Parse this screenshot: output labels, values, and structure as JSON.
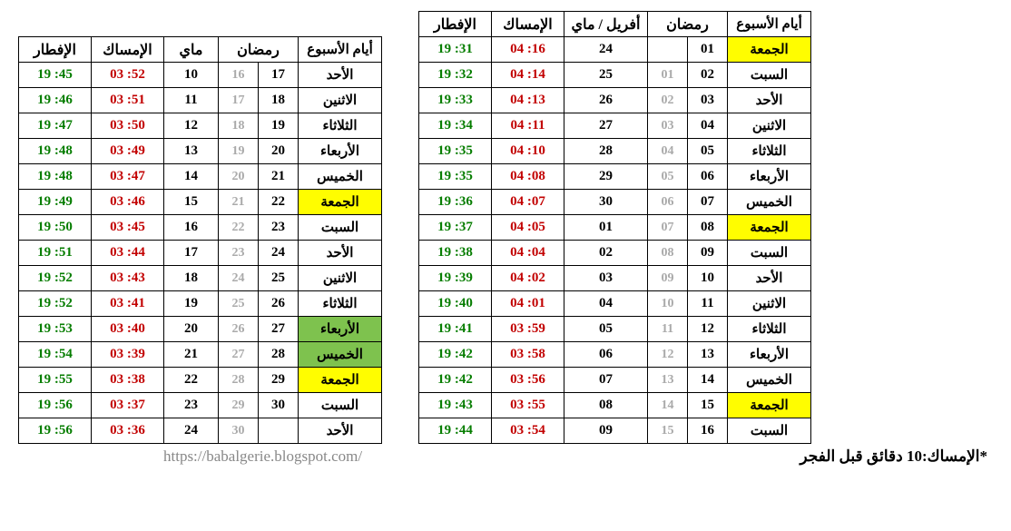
{
  "headers": {
    "iftar": "الإفطار",
    "imsak": "الإمساك",
    "may": "ماي",
    "april_may": "أفريل / ماي",
    "ramadan": "رمضان",
    "weekdays": "أيام الأسبوع"
  },
  "right_table": [
    {
      "iftar": "19 :31",
      "imsak": "04 :16",
      "greg": "24",
      "rama": "",
      "ramb": "01",
      "day": "الجمعة",
      "hl": "yellow"
    },
    {
      "iftar": "19 :32",
      "imsak": "04 :14",
      "greg": "25",
      "rama": "01",
      "ramb": "02",
      "day": "السبت",
      "hl": ""
    },
    {
      "iftar": "19 :33",
      "imsak": "04 :13",
      "greg": "26",
      "rama": "02",
      "ramb": "03",
      "day": "الأحد",
      "hl": ""
    },
    {
      "iftar": "19 :34",
      "imsak": "04 :11",
      "greg": "27",
      "rama": "03",
      "ramb": "04",
      "day": "الاثنين",
      "hl": ""
    },
    {
      "iftar": "19 :35",
      "imsak": "04 :10",
      "greg": "28",
      "rama": "04",
      "ramb": "05",
      "day": "الثلاثاء",
      "hl": ""
    },
    {
      "iftar": "19 :35",
      "imsak": "04 :08",
      "greg": "29",
      "rama": "05",
      "ramb": "06",
      "day": "الأربعاء",
      "hl": ""
    },
    {
      "iftar": "19 :36",
      "imsak": "04 :07",
      "greg": "30",
      "rama": "06",
      "ramb": "07",
      "day": "الخميس",
      "hl": ""
    },
    {
      "iftar": "19 :37",
      "imsak": "04 :05",
      "greg": "01",
      "rama": "07",
      "ramb": "08",
      "day": "الجمعة",
      "hl": "yellow"
    },
    {
      "iftar": "19 :38",
      "imsak": "04 :04",
      "greg": "02",
      "rama": "08",
      "ramb": "09",
      "day": "السبت",
      "hl": ""
    },
    {
      "iftar": "19 :39",
      "imsak": "04 :02",
      "greg": "03",
      "rama": "09",
      "ramb": "10",
      "day": "الأحد",
      "hl": ""
    },
    {
      "iftar": "19 :40",
      "imsak": "04 :01",
      "greg": "04",
      "rama": "10",
      "ramb": "11",
      "day": "الاثنين",
      "hl": ""
    },
    {
      "iftar": "19 :41",
      "imsak": "03 :59",
      "greg": "05",
      "rama": "11",
      "ramb": "12",
      "day": "الثلاثاء",
      "hl": ""
    },
    {
      "iftar": "19 :42",
      "imsak": "03 :58",
      "greg": "06",
      "rama": "12",
      "ramb": "13",
      "day": "الأربعاء",
      "hl": ""
    },
    {
      "iftar": "19 :42",
      "imsak": "03 :56",
      "greg": "07",
      "rama": "13",
      "ramb": "14",
      "day": "الخميس",
      "hl": ""
    },
    {
      "iftar": "19 :43",
      "imsak": "03 :55",
      "greg": "08",
      "rama": "14",
      "ramb": "15",
      "day": "الجمعة",
      "hl": "yellow"
    },
    {
      "iftar": "19 :44",
      "imsak": "03 :54",
      "greg": "09",
      "rama": "15",
      "ramb": "16",
      "day": "السبت",
      "hl": ""
    }
  ],
  "left_table": [
    {
      "iftar": "19 :45",
      "imsak": "03 :52",
      "greg": "10",
      "rama": "16",
      "ramb": "17",
      "day": "الأحد",
      "hl": ""
    },
    {
      "iftar": "19 :46",
      "imsak": "03 :51",
      "greg": "11",
      "rama": "17",
      "ramb": "18",
      "day": "الاثنين",
      "hl": ""
    },
    {
      "iftar": "19 :47",
      "imsak": "03 :50",
      "greg": "12",
      "rama": "18",
      "ramb": "19",
      "day": "الثلاثاء",
      "hl": ""
    },
    {
      "iftar": "19 :48",
      "imsak": "03 :49",
      "greg": "13",
      "rama": "19",
      "ramb": "20",
      "day": "الأربعاء",
      "hl": ""
    },
    {
      "iftar": "19 :48",
      "imsak": "03 :47",
      "greg": "14",
      "rama": "20",
      "ramb": "21",
      "day": "الخميس",
      "hl": ""
    },
    {
      "iftar": "19 :49",
      "imsak": "03 :46",
      "greg": "15",
      "rama": "21",
      "ramb": "22",
      "day": "الجمعة",
      "hl": "yellow"
    },
    {
      "iftar": "19 :50",
      "imsak": "03 :45",
      "greg": "16",
      "rama": "22",
      "ramb": "23",
      "day": "السبت",
      "hl": ""
    },
    {
      "iftar": "19 :51",
      "imsak": "03 :44",
      "greg": "17",
      "rama": "23",
      "ramb": "24",
      "day": "الأحد",
      "hl": ""
    },
    {
      "iftar": "19 :52",
      "imsak": "03 :43",
      "greg": "18",
      "rama": "24",
      "ramb": "25",
      "day": "الاثنين",
      "hl": ""
    },
    {
      "iftar": "19 :52",
      "imsak": "03 :41",
      "greg": "19",
      "rama": "25",
      "ramb": "26",
      "day": "الثلاثاء",
      "hl": ""
    },
    {
      "iftar": "19 :53",
      "imsak": "03 :40",
      "greg": "20",
      "rama": "26",
      "ramb": "27",
      "day": "الأربعاء",
      "hl": "green"
    },
    {
      "iftar": "19 :54",
      "imsak": "03 :39",
      "greg": "21",
      "rama": "27",
      "ramb": "28",
      "day": "الخميس",
      "hl": "green"
    },
    {
      "iftar": "19 :55",
      "imsak": "03 :38",
      "greg": "22",
      "rama": "28",
      "ramb": "29",
      "day": "الجمعة",
      "hl": "yellow"
    },
    {
      "iftar": "19 :56",
      "imsak": "03 :37",
      "greg": "23",
      "rama": "29",
      "ramb": "30",
      "day": "السبت",
      "hl": ""
    },
    {
      "iftar": "19 :56",
      "imsak": "03 :36",
      "greg": "24",
      "rama": "30",
      "ramb": "",
      "day": "الأحد",
      "hl": ""
    }
  ],
  "footer": {
    "url": "https://babalgerie.blogspot.com/",
    "note": "*الإمساك:10 دقائق قبل الفجر"
  },
  "colors": {
    "iftar": "#067d00",
    "imsak": "#c20000",
    "ram_light": "#aaaaaa",
    "text": "#000000",
    "yellow": "#fffd00",
    "green": "#7ec24e",
    "url": "#888888",
    "border": "#000000",
    "bg": "#ffffff"
  }
}
